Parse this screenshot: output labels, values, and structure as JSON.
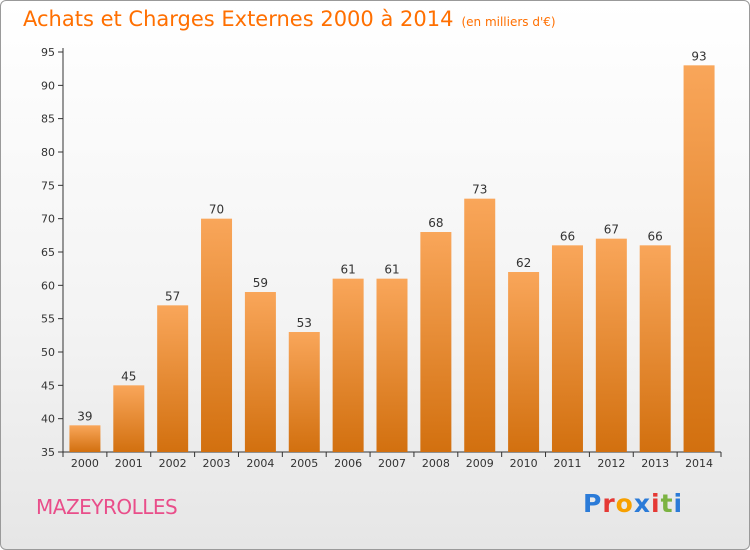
{
  "header": {
    "title": "Achats et Charges Externes 2000 à 2014",
    "unit": "(en milliers d'€)"
  },
  "footer": {
    "commune": "MAZEYROLLES",
    "logo_text": "Proxiti",
    "logo_colors": [
      "#2b7bd8",
      "#e53935",
      "#f7a000",
      "#2b7bd8",
      "#e53935",
      "#7cb342",
      "#2b7bd8"
    ]
  },
  "colors": {
    "title": "#ff6f00",
    "commune": "#e94e8a",
    "bar_top": "#f9a65a",
    "bar_bottom": "#d2700f",
    "axis": "#333333",
    "grid": "#dddddd"
  },
  "chart_data": {
    "type": "bar",
    "title": "Achats et Charges Externes 2000 à 2014",
    "subtitle": "(en milliers d'€)",
    "xlabel": "",
    "ylabel": "",
    "categories": [
      "2000",
      "2001",
      "2002",
      "2003",
      "2004",
      "2005",
      "2006",
      "2007",
      "2008",
      "2009",
      "2010",
      "2011",
      "2012",
      "2013",
      "2014"
    ],
    "values": [
      39,
      45,
      57,
      70,
      59,
      53,
      61,
      61,
      68,
      73,
      62,
      66,
      67,
      66,
      93
    ],
    "ylim": [
      35,
      95
    ],
    "yticks": [
      35,
      40,
      45,
      50,
      55,
      60,
      65,
      70,
      75,
      80,
      85,
      90,
      95
    ],
    "grid": false,
    "legend": "none"
  }
}
